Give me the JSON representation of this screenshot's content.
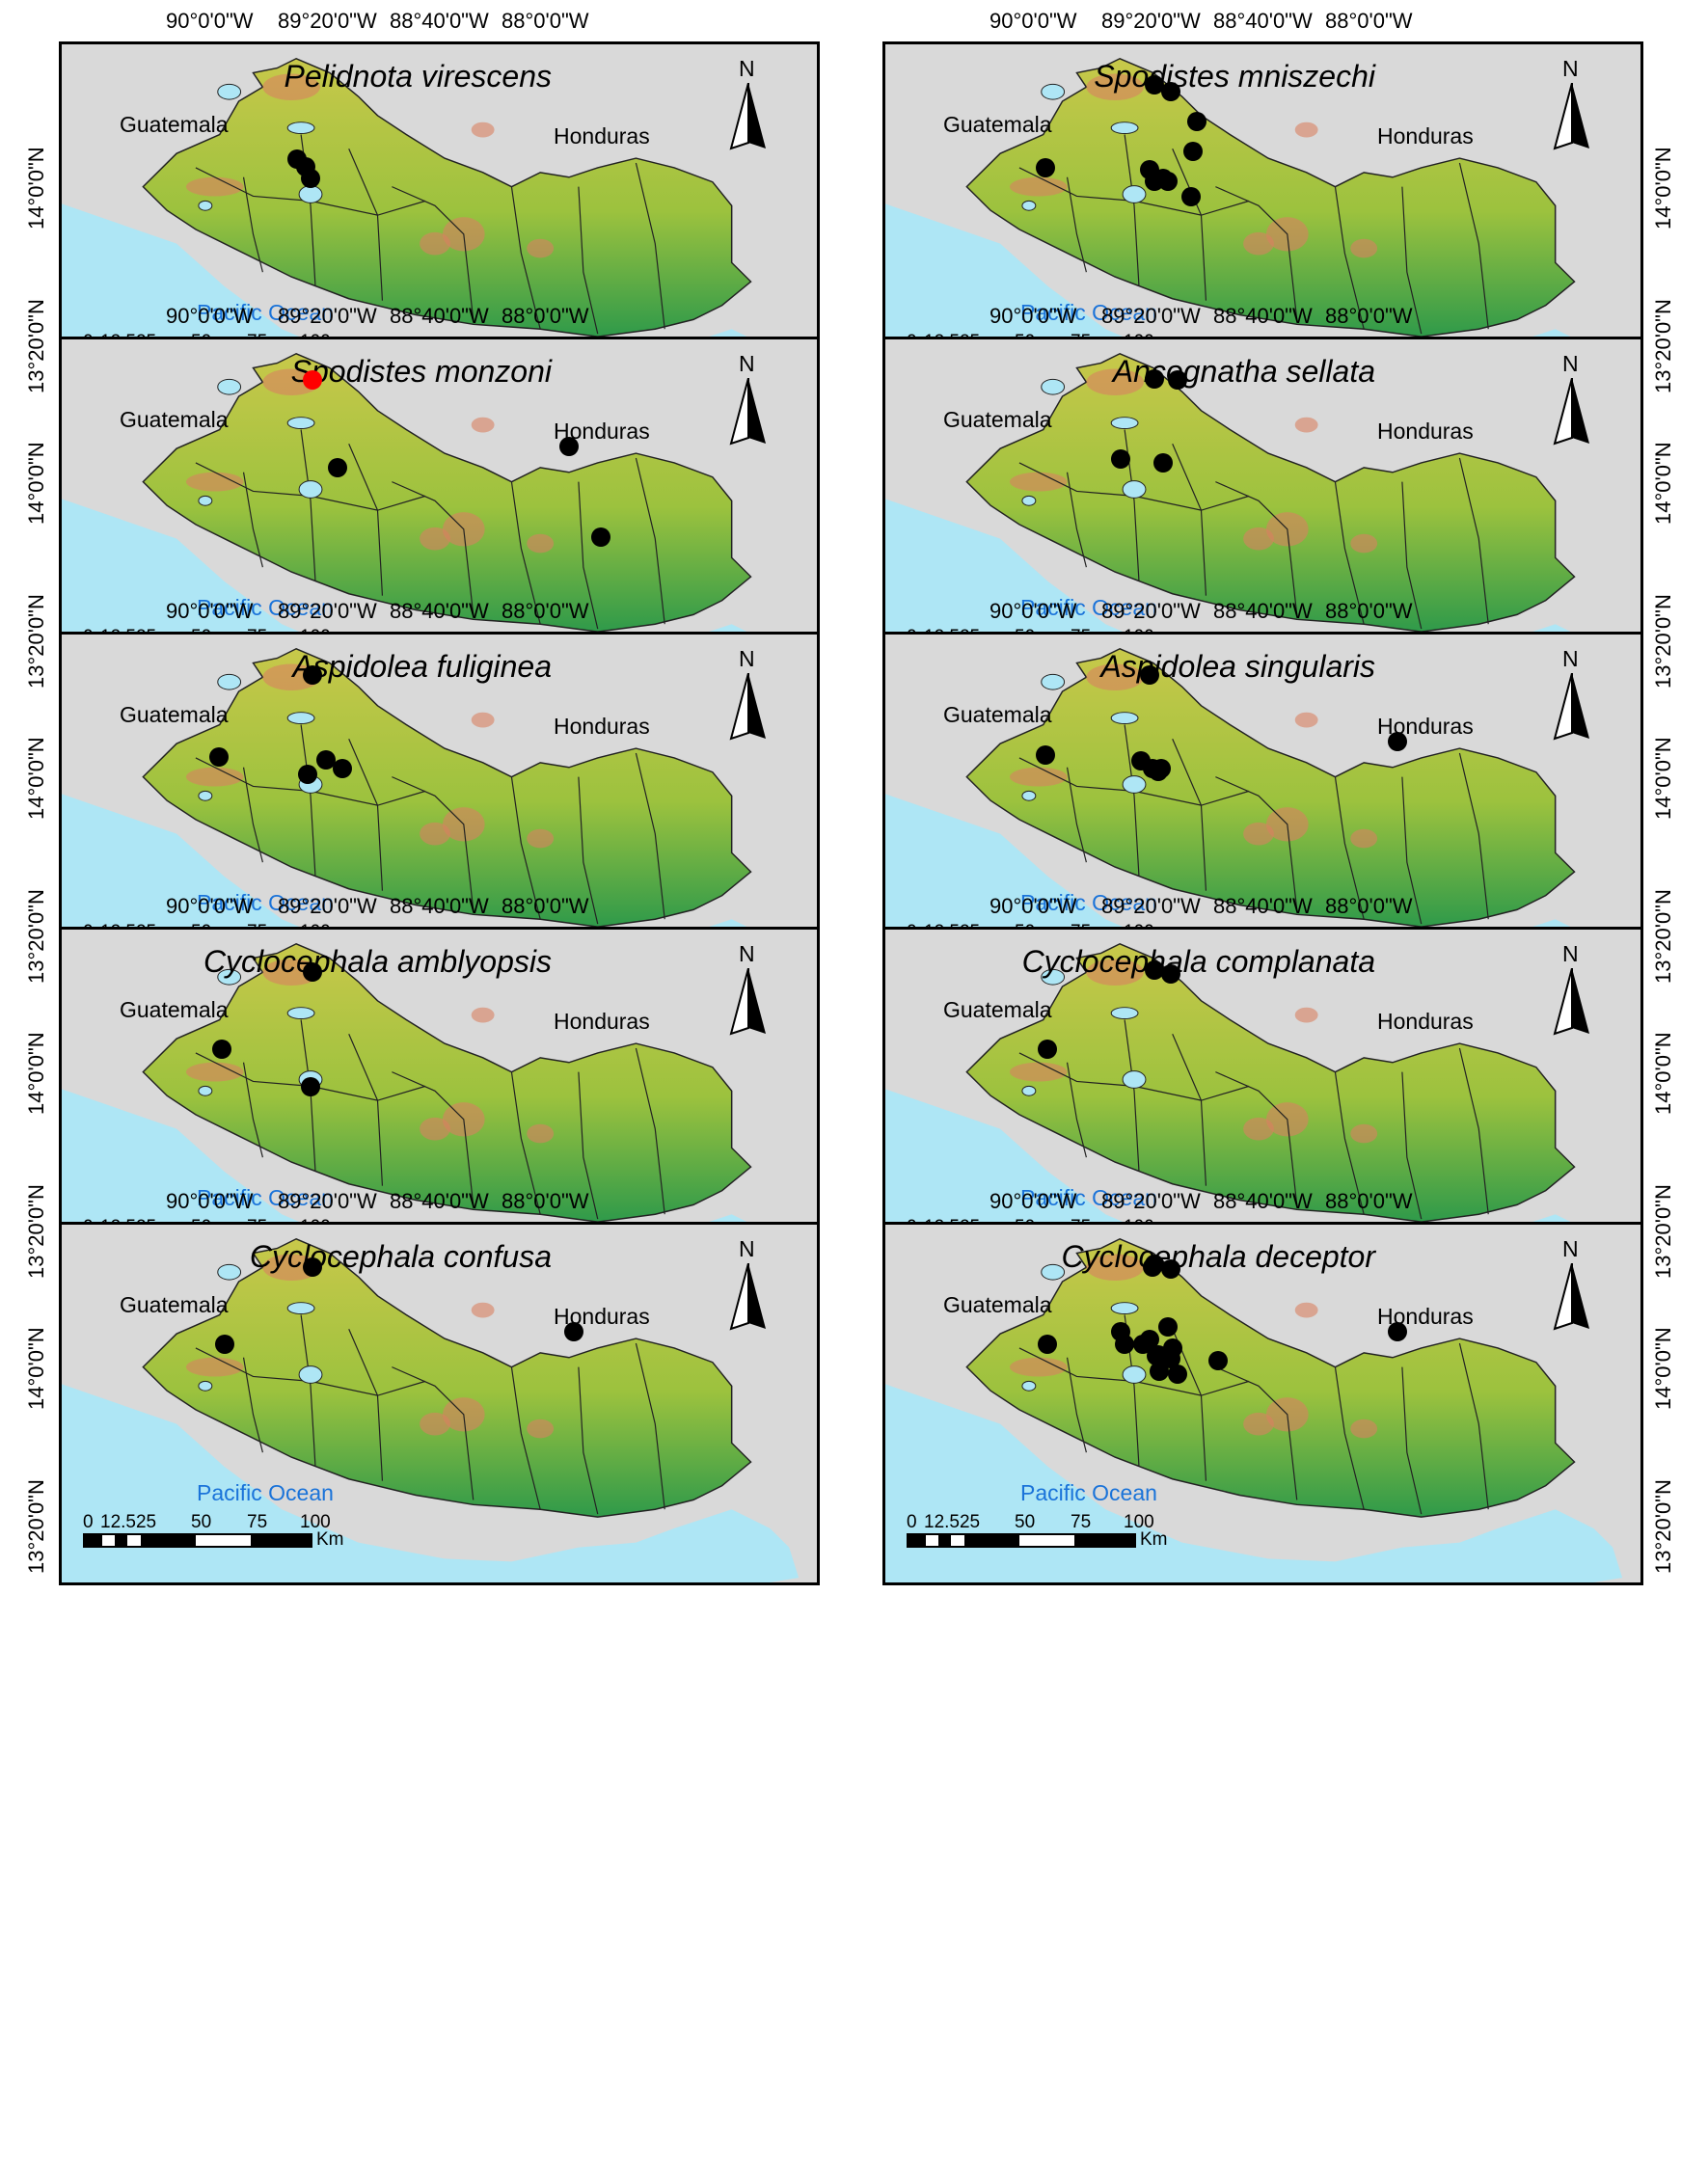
{
  "longitude_labels": [
    "90°0'0\"W",
    "89°20'0\"W",
    "88°40'0\"W",
    "88°0'0\"W"
  ],
  "latitude_labels": [
    "14°0'0\"N",
    "13°20'0\"N"
  ],
  "common_labels": {
    "country_west": "Guatemala",
    "country_north": "Honduras",
    "ocean": "Pacific Ocean",
    "north_arrow": "N",
    "scale_ticks": [
      "0",
      "12.525",
      "50",
      "75",
      "100"
    ],
    "scale_unit": "Km"
  },
  "colors": {
    "ocean": "#aee6f5",
    "land_high": "#d98060",
    "land_mid": "#c8c84a",
    "land_low": "#2f9a4a",
    "record_point": "#000000",
    "new_record_point": "#ff0000"
  },
  "panels": [
    {
      "species": "Pelidnota virescens",
      "records": [
        {
          "lon": -89.55,
          "lat": 13.93
        },
        {
          "lon": -89.5,
          "lat": 13.88
        },
        {
          "lon": -89.47,
          "lat": 13.8
        }
      ]
    },
    {
      "species": "Spodistes mniszechi",
      "records": [
        {
          "lon": -89.35,
          "lat": 14.42
        },
        {
          "lon": -89.25,
          "lat": 14.38
        },
        {
          "lon": -89.1,
          "lat": 14.18
        },
        {
          "lon": -89.12,
          "lat": 13.98
        },
        {
          "lon": -90.0,
          "lat": 13.87
        },
        {
          "lon": -89.38,
          "lat": 13.86
        },
        {
          "lon": -89.35,
          "lat": 13.78
        },
        {
          "lon": -89.3,
          "lat": 13.8
        },
        {
          "lon": -89.27,
          "lat": 13.78
        },
        {
          "lon": -89.13,
          "lat": 13.68
        }
      ]
    },
    {
      "species": "Spodistes monzoni",
      "records": [
        {
          "lon": -89.46,
          "lat": 14.42,
          "new": true
        },
        {
          "lon": -87.93,
          "lat": 13.98
        },
        {
          "lon": -89.31,
          "lat": 13.84
        },
        {
          "lon": -87.74,
          "lat": 13.38
        }
      ]
    },
    {
      "species": "Ancognatha sellata",
      "records": [
        {
          "lon": -89.35,
          "lat": 14.43
        },
        {
          "lon": -89.21,
          "lat": 14.42
        },
        {
          "lon": -89.55,
          "lat": 13.9
        },
        {
          "lon": -89.3,
          "lat": 13.87
        }
      ]
    },
    {
      "species": "Aspidolea fuliginea",
      "records": [
        {
          "lon": -89.46,
          "lat": 14.42
        },
        {
          "lon": -90.02,
          "lat": 13.88
        },
        {
          "lon": -89.38,
          "lat": 13.86
        },
        {
          "lon": -89.28,
          "lat": 13.8
        },
        {
          "lon": -89.49,
          "lat": 13.76
        }
      ]
    },
    {
      "species": "Aspidolea singularis",
      "records": [
        {
          "lon": -89.38,
          "lat": 14.42
        },
        {
          "lon": -87.9,
          "lat": 13.98
        },
        {
          "lon": -90.0,
          "lat": 13.89
        },
        {
          "lon": -89.43,
          "lat": 13.85
        },
        {
          "lon": -89.36,
          "lat": 13.8
        },
        {
          "lon": -89.31,
          "lat": 13.8
        },
        {
          "lon": -89.33,
          "lat": 13.78
        }
      ]
    },
    {
      "species": "Cyclocephala amblyopsis",
      "records": [
        {
          "lon": -89.46,
          "lat": 14.41
        },
        {
          "lon": -90.0,
          "lat": 13.9
        },
        {
          "lon": -89.47,
          "lat": 13.65
        }
      ]
    },
    {
      "species": "Cyclocephala complanata",
      "records": [
        {
          "lon": -89.35,
          "lat": 14.42
        },
        {
          "lon": -89.25,
          "lat": 14.4
        },
        {
          "lon": -89.99,
          "lat": 13.9
        }
      ]
    },
    {
      "species": "Cyclocephala confusa",
      "records": [
        {
          "lon": -89.46,
          "lat": 14.41
        },
        {
          "lon": -87.9,
          "lat": 13.98
        },
        {
          "lon": -89.98,
          "lat": 13.9
        }
      ]
    },
    {
      "species": "Cyclocephala deceptor",
      "records": [
        {
          "lon": -89.35,
          "lat": 14.43
        },
        {
          "lon": -89.36,
          "lat": 14.41
        },
        {
          "lon": -89.25,
          "lat": 14.4
        },
        {
          "lon": -87.9,
          "lat": 13.98
        },
        {
          "lon": -89.55,
          "lat": 13.98
        },
        {
          "lon": -89.27,
          "lat": 14.01
        },
        {
          "lon": -89.38,
          "lat": 13.93
        },
        {
          "lon": -89.99,
          "lat": 13.9
        },
        {
          "lon": -89.53,
          "lat": 13.9
        },
        {
          "lon": -89.42,
          "lat": 13.9
        },
        {
          "lon": -89.24,
          "lat": 13.87
        },
        {
          "lon": -89.33,
          "lat": 13.83
        },
        {
          "lon": -89.27,
          "lat": 13.82
        },
        {
          "lon": -89.25,
          "lat": 13.8
        },
        {
          "lon": -89.34,
          "lat": 13.82
        },
        {
          "lon": -88.97,
          "lat": 13.79
        },
        {
          "lon": -89.32,
          "lat": 13.72
        },
        {
          "lon": -89.21,
          "lat": 13.7
        }
      ]
    }
  ]
}
